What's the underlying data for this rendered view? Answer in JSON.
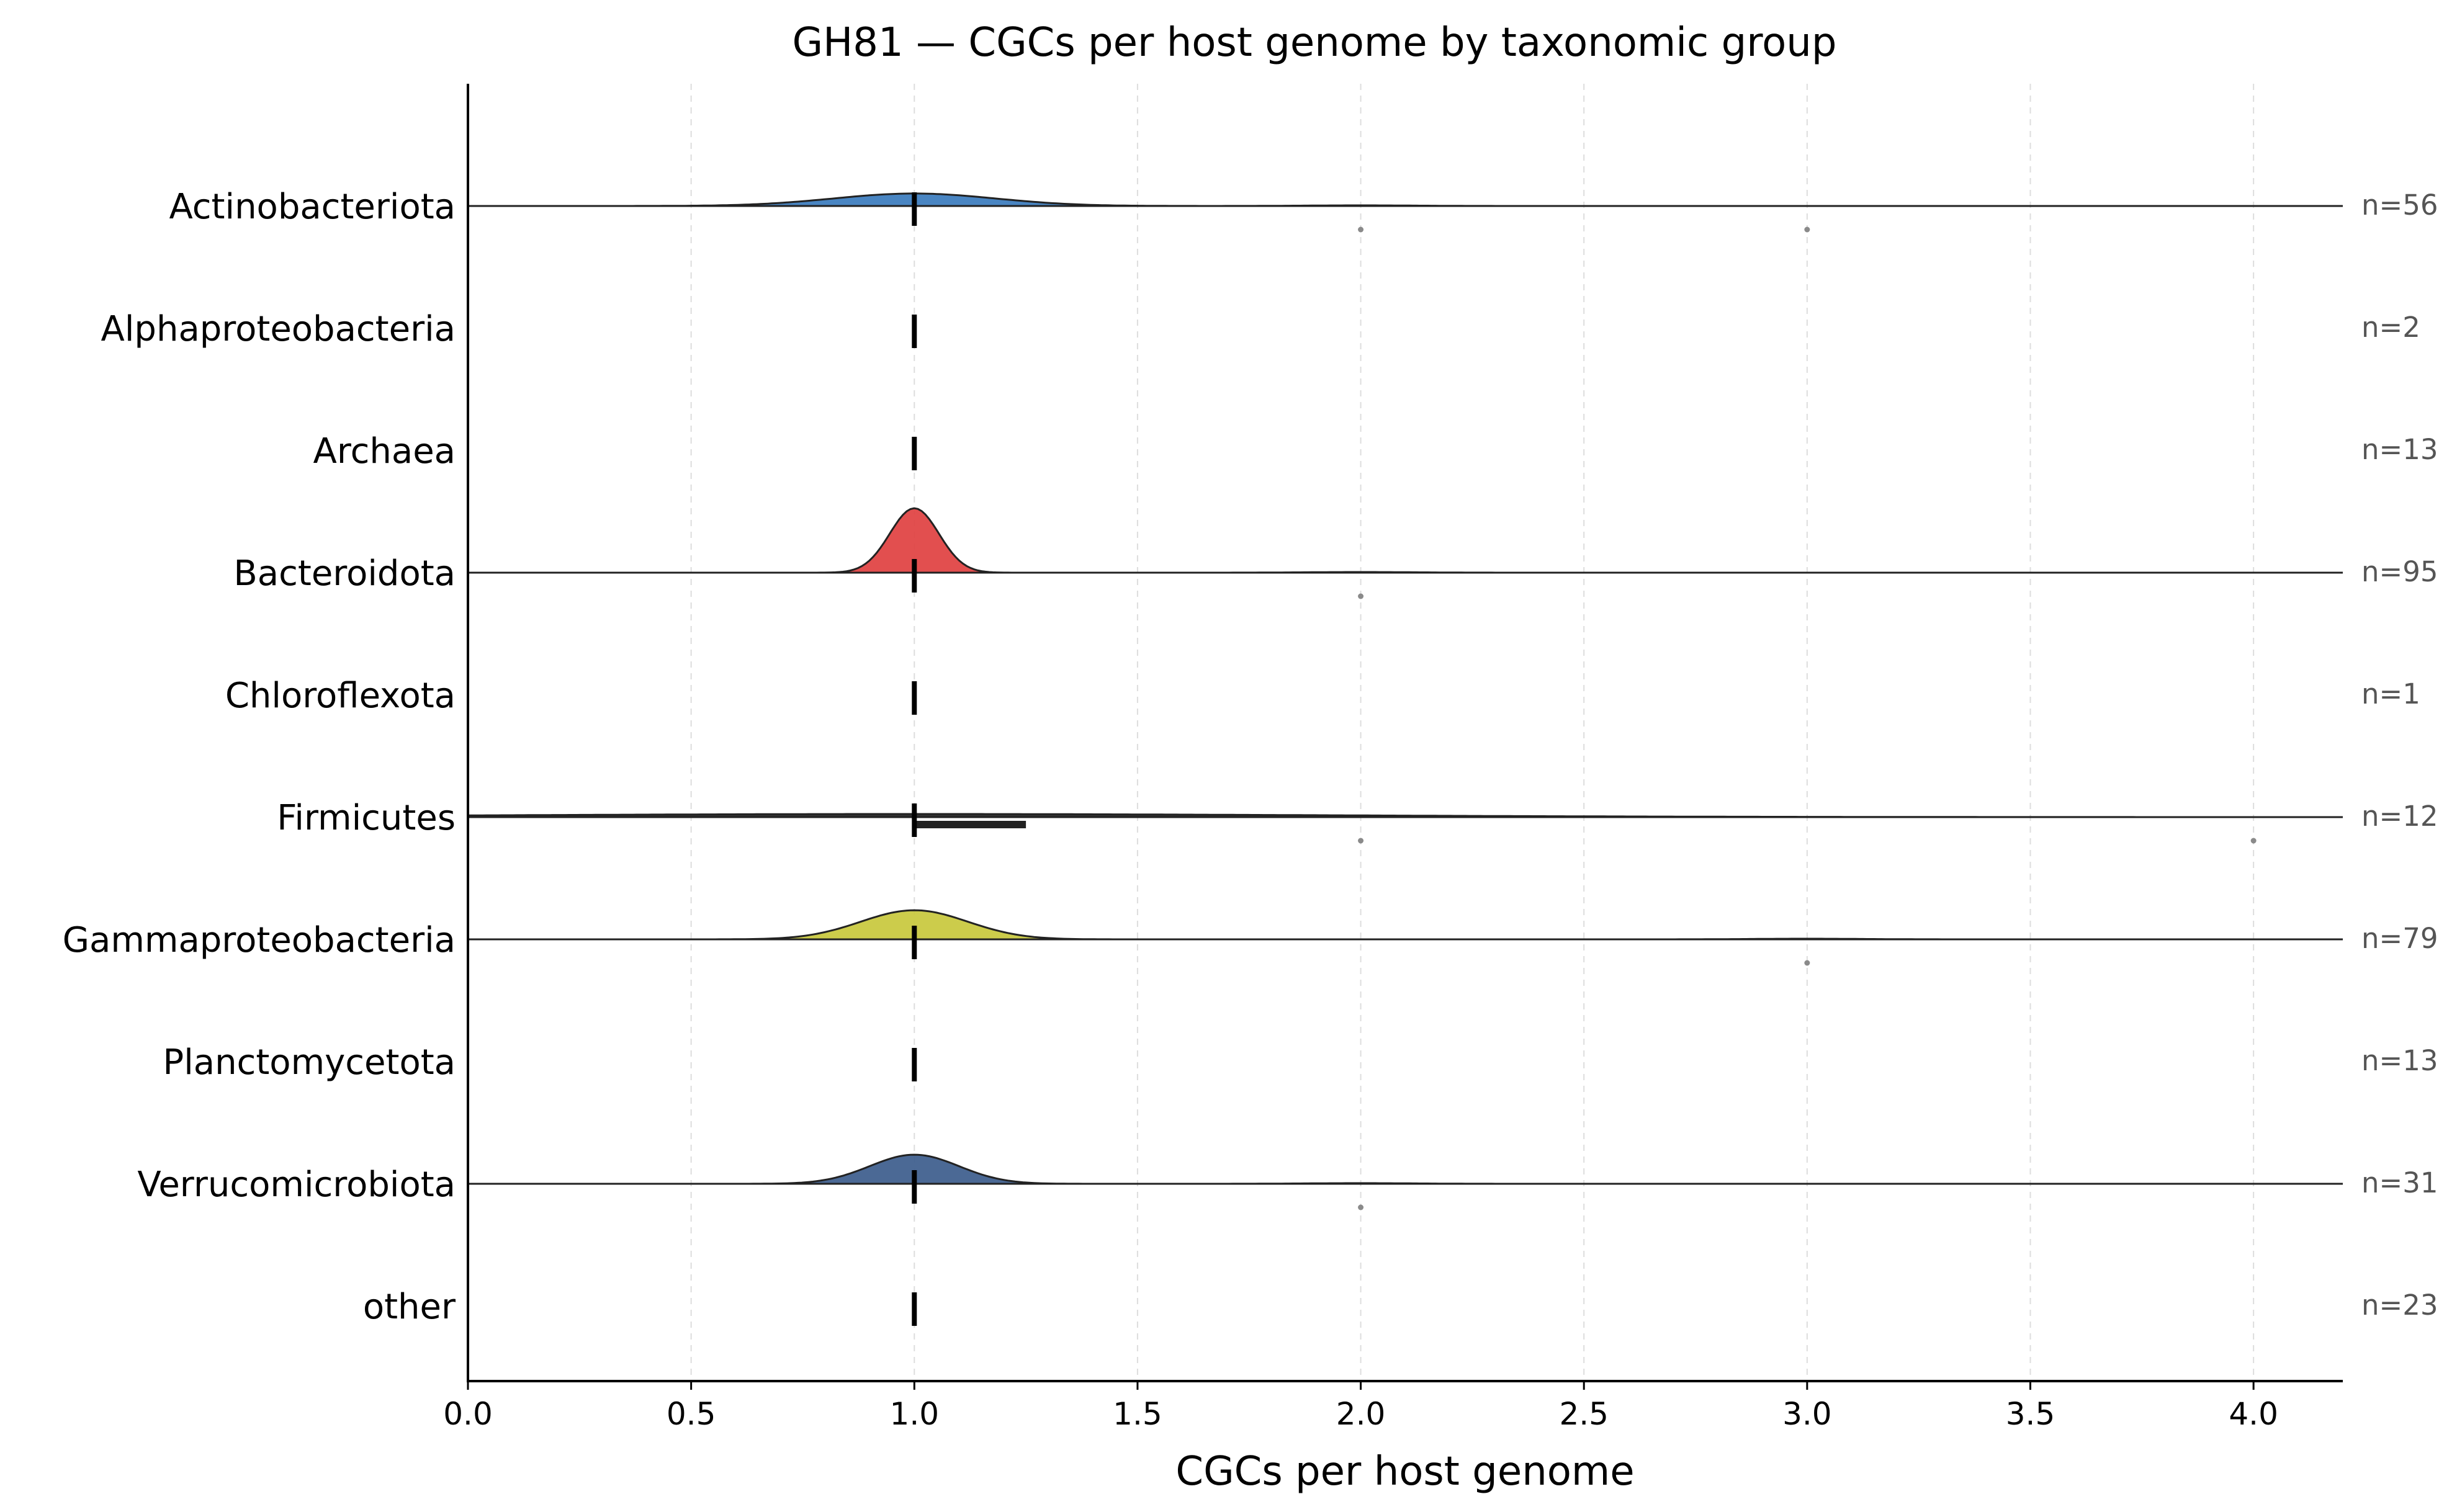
{
  "chart_data": {
    "type": "ridgeline",
    "title": "GH81 — CGCs per host genome by taxonomic group",
    "xlabel": "CGCs per host genome",
    "ylabel": "",
    "xlim": [
      0.0,
      4.2
    ],
    "xticks": [
      "0.0",
      "0.5",
      "1.0",
      "1.5",
      "2.0",
      "2.5",
      "3.0",
      "3.5",
      "4.0"
    ],
    "grid": "vertical dashed",
    "groups": [
      {
        "name": "Actinobacteriota",
        "n_label": "n=56",
        "n": 56,
        "color": "#3a7bbd",
        "median": 1.0,
        "iqr": [
          1.0,
          1.0
        ],
        "kde_peak": 1.0,
        "kde_width": 0.18,
        "kde_height": 0.12,
        "outliers": [
          2.0,
          3.0
        ],
        "shoulders": [
          2.0
        ]
      },
      {
        "name": "Alphaproteobacteria",
        "n_label": "n=2",
        "n": 2,
        "color": null,
        "median": 1.0,
        "iqr": [
          1.0,
          1.0
        ],
        "outliers": []
      },
      {
        "name": "Archaea",
        "n_label": "n=13",
        "n": 13,
        "color": null,
        "median": 1.0,
        "iqr": [
          1.0,
          1.0
        ],
        "outliers": []
      },
      {
        "name": "Bacteroidota",
        "n_label": "n=95",
        "n": 95,
        "color": "#e04040",
        "median": 1.0,
        "iqr": [
          1.0,
          1.0
        ],
        "kde_peak": 1.0,
        "kde_width": 0.055,
        "kde_height": 0.62,
        "outliers": [
          2.0
        ],
        "shoulders": [
          2.0
        ]
      },
      {
        "name": "Chloroflexota",
        "n_label": "n=1",
        "n": 1,
        "color": null,
        "median": 1.0,
        "iqr": [
          1.0,
          1.0
        ],
        "outliers": []
      },
      {
        "name": "Firmicutes",
        "n_label": "n=12",
        "n": 12,
        "color": "#222222",
        "median": 1.0,
        "iqr": [
          1.0,
          1.25
        ],
        "kde_peak": 1.0,
        "kde_width": 0.9,
        "kde_height": 0.03,
        "outliers": [
          2.0,
          4.0
        ],
        "shoulders": []
      },
      {
        "name": "Gammaproteobacteria",
        "n_label": "n=79",
        "n": 79,
        "color": "#c8c83c",
        "median": 1.0,
        "iqr": [
          1.0,
          1.0
        ],
        "kde_peak": 1.0,
        "kde_width": 0.12,
        "kde_height": 0.28,
        "outliers": [
          3.0
        ],
        "shoulders": [
          3.0
        ]
      },
      {
        "name": "Planctomycetota",
        "n_label": "n=13",
        "n": 13,
        "color": null,
        "median": 1.0,
        "iqr": [
          1.0,
          1.0
        ],
        "outliers": []
      },
      {
        "name": "Verrucomicrobiota",
        "n_label": "n=31",
        "n": 31,
        "color": "#3c5c8c",
        "median": 1.0,
        "iqr": [
          1.0,
          1.0
        ],
        "kde_peak": 1.0,
        "kde_width": 0.1,
        "kde_height": 0.28,
        "outliers": [
          2.0
        ],
        "shoulders": [
          2.0
        ]
      },
      {
        "name": "other",
        "n_label": "n=23",
        "n": 23,
        "color": null,
        "median": 1.0,
        "iqr": [
          1.0,
          1.0
        ],
        "outliers": []
      }
    ]
  }
}
